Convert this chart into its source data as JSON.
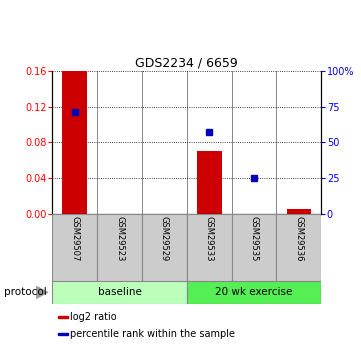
{
  "title": "GDS2234 / 6659",
  "samples": [
    "GSM29507",
    "GSM29523",
    "GSM29529",
    "GSM29533",
    "GSM29535",
    "GSM29536"
  ],
  "log2_ratio": [
    0.16,
    0.0,
    0.0,
    0.07,
    0.0,
    0.005
  ],
  "percentile_rank": [
    71.0,
    null,
    null,
    57.0,
    25.0,
    null
  ],
  "ylim_left": [
    0,
    0.16
  ],
  "ylim_right": [
    0,
    100
  ],
  "yticks_left": [
    0,
    0.04,
    0.08,
    0.12,
    0.16
  ],
  "yticks_right": [
    0,
    25,
    50,
    75,
    100
  ],
  "ytick_labels_right": [
    "0",
    "25",
    "50",
    "75",
    "100%"
  ],
  "bar_color": "#cc0000",
  "dot_color": "#0000bb",
  "protocol_groups": [
    {
      "label": "baseline",
      "start": 0,
      "end": 2,
      "color": "#bbffbb"
    },
    {
      "label": "20 wk exercise",
      "start": 3,
      "end": 5,
      "color": "#55ee55"
    }
  ],
  "protocol_label": "protocol",
  "legend_items": [
    {
      "color": "#cc0000",
      "label": "log2 ratio"
    },
    {
      "color": "#0000bb",
      "label": "percentile rank within the sample"
    }
  ],
  "background_color": "#ffffff",
  "bar_width": 0.55,
  "title_fontsize": 9,
  "tick_fontsize": 7,
  "sample_fontsize": 6,
  "legend_fontsize": 7,
  "protocol_fontsize": 7.5
}
